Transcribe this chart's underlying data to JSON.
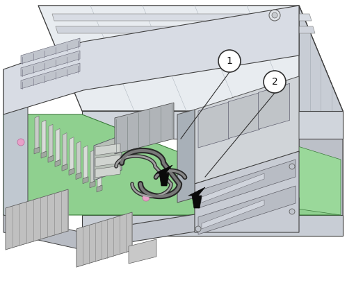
{
  "bg_color": "#ffffff",
  "chassis_top_color": "#e8ecf0",
  "chassis_side_color": "#c8cdd5",
  "chassis_front_color": "#d0d5dc",
  "board_color": "#8fd08f",
  "board_light": "#a8e0a8",
  "cable_dark": "#505050",
  "cable_mid": "#888888",
  "arrow_color": "#0a0a0a",
  "heatsink_color": "#c8c8c8",
  "mem_color": "#c0c8c0",
  "comp_color": "#d0d0d0",
  "label1": "1",
  "label2": "2",
  "figsize": [
    4.99,
    4.08
  ],
  "dpi": 100,
  "line_dark": "#404040",
  "line_med": "#707070"
}
